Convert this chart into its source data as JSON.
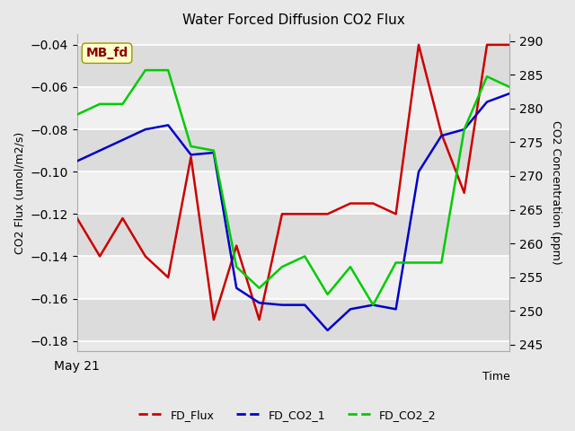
{
  "title": "Water Forced Diffusion CO2 Flux",
  "xlabel": "Time",
  "ylabel_left": "CO2 Flux (umol/m2/s)",
  "ylabel_right": "CO2 Concentration (ppm)",
  "x_label_first": "May 21",
  "annotation_text": "MB_fd",
  "ylim_left": [
    -0.185,
    -0.035
  ],
  "ylim_right": [
    244,
    291
  ],
  "yticks_left": [
    -0.18,
    -0.16,
    -0.14,
    -0.12,
    -0.1,
    -0.08,
    -0.06,
    -0.04
  ],
  "yticks_right": [
    245,
    250,
    255,
    260,
    265,
    270,
    275,
    280,
    285,
    290
  ],
  "fig_bg_color": "#e8e8e8",
  "plot_bg_color": "#e8e8e8",
  "band_light": "#f0f0f0",
  "band_dark": "#dcdcdc",
  "fd_flux_color": "#cc0000",
  "fd_co2_1_color": "#0000cc",
  "fd_co2_2_color": "#00cc00",
  "fd_flux_y": [
    -0.122,
    -0.14,
    -0.122,
    -0.14,
    -0.15,
    -0.093,
    -0.17,
    -0.135,
    -0.17,
    -0.12,
    -0.12,
    -0.12,
    -0.115,
    -0.115,
    -0.12,
    -0.04,
    -0.082,
    -0.11,
    -0.04,
    -0.04
  ],
  "fd_co2_1_y": [
    -0.095,
    -0.09,
    -0.085,
    -0.08,
    -0.078,
    -0.092,
    -0.091,
    -0.155,
    -0.162,
    -0.163,
    -0.163,
    -0.175,
    -0.165,
    -0.163,
    -0.165,
    -0.1,
    -0.083,
    -0.08,
    -0.067,
    -0.063
  ],
  "fd_co2_2_y": [
    -0.073,
    -0.068,
    -0.068,
    -0.052,
    -0.052,
    -0.088,
    -0.09,
    -0.145,
    -0.155,
    -0.145,
    -0.14,
    -0.158,
    -0.145,
    -0.163,
    -0.143,
    -0.143,
    -0.143,
    -0.08,
    -0.055,
    -0.06
  ],
  "grid_color": "#ffffff",
  "line_width": 1.8
}
